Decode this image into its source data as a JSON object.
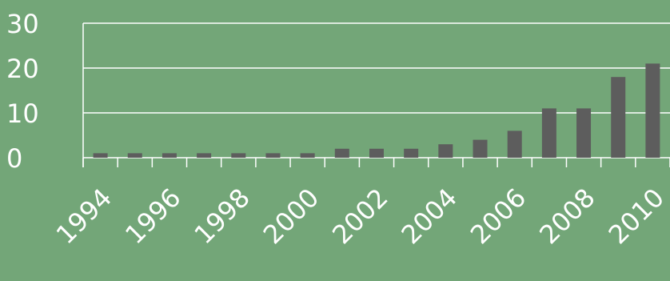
{
  "chart_data": {
    "type": "bar",
    "categories": [
      "1994",
      "1995",
      "1996",
      "1997",
      "1998",
      "1999",
      "2000",
      "2001",
      "2002",
      "2003",
      "2004",
      "2005",
      "2006",
      "2007",
      "2008",
      "2009",
      "2010"
    ],
    "values": [
      1,
      1,
      1,
      1,
      1,
      1,
      1,
      2,
      2,
      2,
      3,
      4,
      6,
      11,
      11,
      18,
      21
    ],
    "x_tick_labels": [
      "1994",
      "1996",
      "1998",
      "2000",
      "2002",
      "2004",
      "2006",
      "2008",
      "2010"
    ],
    "y_ticks": [
      0,
      10,
      20,
      30
    ],
    "ylim": [
      0,
      30
    ],
    "grid": true,
    "legend": "none",
    "colors": {
      "background": "#73a678",
      "bar": "#5d5d5d",
      "grid": "#ffffff",
      "text": "#ffffff"
    }
  }
}
